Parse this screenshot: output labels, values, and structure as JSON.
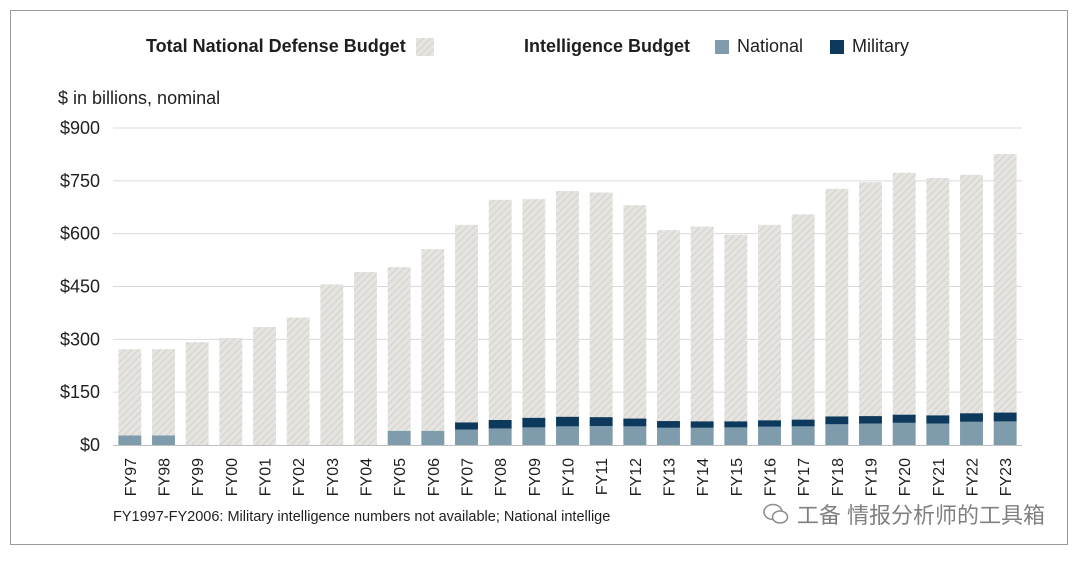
{
  "legend": {
    "total_label": "Total National Defense Budget",
    "intel_label": "Intelligence Budget",
    "national_label": "National",
    "military_label": "Military"
  },
  "colors": {
    "total_fill": "#e6e4e0",
    "total_hatch": "#cfccc7",
    "national": "#7f9cad",
    "military": "#0d3a5c",
    "grid": "#d9d9d9",
    "text": "#1f1f1f"
  },
  "unit_label": "$ in billions, nominal",
  "footnote": "FY1997-FY2006: Military intelligence numbers not available; National intellige",
  "watermark": "工备 情报分析师的工具箱",
  "chart_data": {
    "type": "bar",
    "stacked_overlay": true,
    "title": "",
    "xlabel": "",
    "ylabel": "$ in billions, nominal",
    "ylim": [
      0,
      900
    ],
    "yticks": [
      0,
      150,
      300,
      450,
      600,
      750,
      900
    ],
    "ytick_labels": [
      "$0",
      "$150",
      "$300",
      "$450",
      "$600",
      "$750",
      "$900"
    ],
    "grid": true,
    "legend_position": "top",
    "categories": [
      "FY97",
      "FY98",
      "FY99",
      "FY00",
      "FY01",
      "FY02",
      "FY03",
      "FY04",
      "FY05",
      "FY06",
      "FY07",
      "FY08",
      "FY09",
      "FY10",
      "FY11",
      "FY12",
      "FY13",
      "FY14",
      "FY15",
      "FY16",
      "FY17",
      "FY18",
      "FY19",
      "FY20",
      "FY21",
      "FY22",
      "FY23"
    ],
    "series": [
      {
        "name": "Total National Defense Budget",
        "values": [
          272,
          272,
          292,
          304,
          335,
          362,
          456,
          491,
          505,
          556,
          625,
          696,
          698,
          721,
          717,
          681,
          610,
          620,
          597,
          625,
          655,
          727,
          746,
          773,
          758,
          767,
          826
        ]
      },
      {
        "name": "National",
        "values": [
          27,
          27,
          null,
          null,
          null,
          null,
          null,
          null,
          40,
          40,
          44,
          47,
          50,
          53,
          54,
          53,
          49,
          49,
          50,
          52,
          53,
          59,
          61,
          63,
          61,
          66,
          67
        ]
      },
      {
        "name": "Military",
        "values": [
          null,
          null,
          null,
          null,
          null,
          null,
          null,
          null,
          null,
          null,
          20,
          24,
          27,
          27,
          25,
          22,
          19,
          18,
          17,
          18,
          19,
          22,
          21,
          23,
          23,
          24,
          25
        ]
      }
    ]
  }
}
